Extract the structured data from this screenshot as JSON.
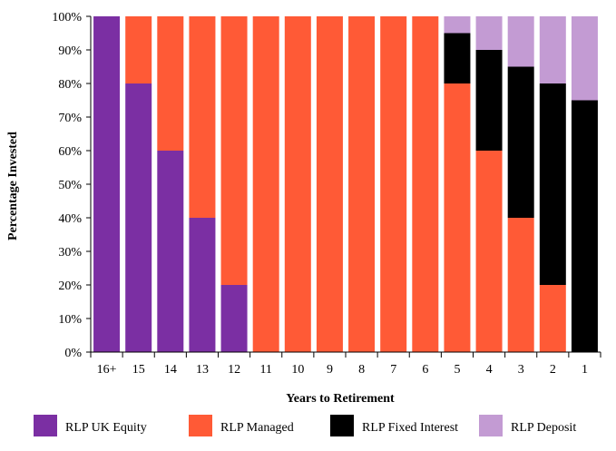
{
  "chart_data": {
    "type": "bar",
    "stacked": true,
    "xlabel": "Years to Retirement",
    "ylabel": "Percentage Invested",
    "ylim": [
      0,
      100
    ],
    "y_tick_format": "percent",
    "y_ticks": [
      0,
      10,
      20,
      30,
      40,
      50,
      60,
      70,
      80,
      90,
      100
    ],
    "y_tick_labels": [
      "0%",
      "10%",
      "20%",
      "30%",
      "40%",
      "50%",
      "60%",
      "70%",
      "80%",
      "90%",
      "100%"
    ],
    "grid": false,
    "legend_position": "bottom",
    "categories": [
      "16+",
      "15",
      "14",
      "13",
      "12",
      "11",
      "10",
      "9",
      "8",
      "7",
      "6",
      "5",
      "4",
      "3",
      "2",
      "1"
    ],
    "series": [
      {
        "name": "RLP UK Equity",
        "color": "#7b2fa3",
        "values": [
          100,
          80,
          60,
          40,
          20,
          0,
          0,
          0,
          0,
          0,
          0,
          0,
          0,
          0,
          0,
          0
        ]
      },
      {
        "name": "RLP Managed",
        "color": "#ff5a36",
        "values": [
          0,
          20,
          40,
          60,
          80,
          100,
          100,
          100,
          100,
          100,
          100,
          80,
          60,
          40,
          20,
          0
        ]
      },
      {
        "name": "RLP Fixed Interest",
        "color": "#000000",
        "values": [
          0,
          0,
          0,
          0,
          0,
          0,
          0,
          0,
          0,
          0,
          0,
          15,
          30,
          45,
          60,
          75
        ]
      },
      {
        "name": "RLP Deposit",
        "color": "#c39bd3",
        "values": [
          0,
          0,
          0,
          0,
          0,
          0,
          0,
          0,
          0,
          0,
          0,
          5,
          10,
          15,
          20,
          25
        ]
      }
    ]
  }
}
